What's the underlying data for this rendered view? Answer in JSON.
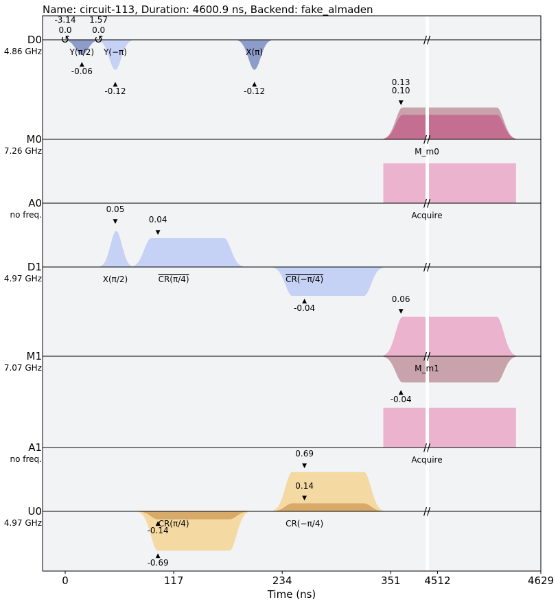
{
  "chart_data": {
    "type": "pulse-schedule",
    "title": "Name: circuit-113, Duration: 4600.9 ns, Backend: fake_almaden",
    "xlabel": "Time (ns)",
    "x_ticks": [
      "0",
      "117",
      "234",
      "351",
      "4512",
      "4629"
    ],
    "background": "#f2f3f5",
    "channels": [
      {
        "name": "D0",
        "freq": "4.86 GHz"
      },
      {
        "name": "M0",
        "freq": "7.26 GHz"
      },
      {
        "name": "A0",
        "freq": "no freq."
      },
      {
        "name": "D1",
        "freq": "4.97 GHz"
      },
      {
        "name": "M1",
        "freq": "7.07 GHz"
      },
      {
        "name": "A1",
        "freq": "no freq."
      },
      {
        "name": "U0",
        "freq": "4.97 GHz"
      }
    ],
    "phase_labels": [
      {
        "channel": "D0",
        "time": 0,
        "values": [
          "-3.14",
          "0.0"
        ]
      },
      {
        "channel": "D0",
        "time": 36,
        "values": [
          "1.57",
          "0.0"
        ]
      }
    ],
    "gate_labels": [
      {
        "channel": "D0",
        "time": 18,
        "text": "Y(π/2)"
      },
      {
        "channel": "D0",
        "time": 54,
        "text": "Y(−π)"
      },
      {
        "channel": "D0",
        "time": 204,
        "text": "X(π)"
      },
      {
        "channel": "M0",
        "time": 0,
        "text": "M_m0",
        "at_break": true
      },
      {
        "channel": "A0",
        "time": 0,
        "text": "Acquire",
        "at_break": true
      },
      {
        "channel": "D1",
        "time": 54,
        "text": "X(π/2)"
      },
      {
        "channel": "D1",
        "time": 117,
        "text": "CR(π/4)",
        "overline": true
      },
      {
        "channel": "D1",
        "time": 258,
        "text": "CR(−π/4)",
        "overline": true
      },
      {
        "channel": "M1",
        "time": 0,
        "text": "M_m1",
        "at_break": true
      },
      {
        "channel": "A1",
        "time": 0,
        "text": "Acquire",
        "at_break": true
      },
      {
        "channel": "U0",
        "time": 117,
        "text": "CR(π/4)"
      },
      {
        "channel": "U0",
        "time": 258,
        "text": "CR(−π/4)"
      }
    ],
    "amplitude_labels": [
      {
        "channel": "D0",
        "time": 18,
        "text": "-0.06",
        "below": true
      },
      {
        "channel": "D0",
        "time": 54,
        "text": "-0.12",
        "below": true
      },
      {
        "channel": "D0",
        "time": 204,
        "text": "-0.12",
        "below": true
      },
      {
        "channel": "D0",
        "time": 362,
        "text": "0.13",
        "below": false
      },
      {
        "channel": "D0",
        "time": 362,
        "text": "0.10",
        "below": false
      },
      {
        "channel": "D1",
        "time": 54,
        "text": "0.05",
        "below": false
      },
      {
        "channel": "D1",
        "time": 100,
        "text": "0.04",
        "below": false
      },
      {
        "channel": "D1",
        "time": 258,
        "text": "-0.04",
        "below": true
      },
      {
        "channel": "D1",
        "time": 362,
        "text": "0.06",
        "below": false
      },
      {
        "channel": "M1",
        "time": 362,
        "text": "-0.04",
        "below": true
      },
      {
        "channel": "A1",
        "time": 258,
        "text": "0.69",
        "below": false
      },
      {
        "channel": "A1",
        "time": 258,
        "text": "0.14",
        "below": false
      },
      {
        "channel": "U0",
        "time": 100,
        "text": "-0.14",
        "below": true
      },
      {
        "channel": "U0",
        "time": 100,
        "text": "-0.69",
        "below": true
      }
    ],
    "waveforms": [
      {
        "channel": "D0",
        "kind": "gaussian",
        "start": 0,
        "end": 36,
        "amplitude": -0.06,
        "color": "#8e9cc9"
      },
      {
        "channel": "D0",
        "kind": "gaussian",
        "start": 36,
        "end": 72,
        "amplitude": -0.12,
        "color": "#c5d1f5"
      },
      {
        "channel": "D0",
        "kind": "gaussian",
        "start": 186,
        "end": 222,
        "amplitude": -0.12,
        "color": "#8e9cc9"
      },
      {
        "channel": "M0",
        "kind": "gaussian_square",
        "start": 343,
        "end": 4600.9,
        "amplitude": 0.13,
        "color": "#c9a3ab"
      },
      {
        "channel": "M0",
        "kind": "gaussian_square",
        "start": 343,
        "end": 4600.9,
        "amplitude": 0.1,
        "color": "#c46e92"
      },
      {
        "channel": "A0",
        "kind": "acquire",
        "start": 343,
        "end": 4600.9,
        "color": "#ebb3ce"
      },
      {
        "channel": "D1",
        "kind": "gaussian",
        "start": 38,
        "end": 72,
        "amplitude": 0.05,
        "color": "#c5d1f5"
      },
      {
        "channel": "D1",
        "kind": "gaussian_square",
        "start": 72,
        "end": 192,
        "amplitude": 0.04,
        "color": "#c5d1f5"
      },
      {
        "channel": "D1",
        "kind": "gaussian_square",
        "start": 224,
        "end": 343,
        "amplitude": -0.04,
        "color": "#c5d1f5"
      },
      {
        "channel": "M1",
        "kind": "gaussian_square",
        "start": 343,
        "end": 4600.9,
        "amplitude": 0.06,
        "color": "#ebb3ce"
      },
      {
        "channel": "M1",
        "kind": "gaussian_square",
        "start": 343,
        "end": 4600.9,
        "amplitude": -0.04,
        "color": "#c9a3ab"
      },
      {
        "channel": "A1",
        "kind": "acquire",
        "start": 343,
        "end": 4600.9,
        "color": "#ebb3ce"
      },
      {
        "channel": "U0",
        "kind": "gaussian_square",
        "start": 224,
        "end": 343,
        "amplitude": 0.69,
        "color": "#f4d9a3"
      },
      {
        "channel": "U0",
        "kind": "gaussian_square",
        "start": 224,
        "end": 343,
        "amplitude": 0.14,
        "color": "#d8aa6a"
      },
      {
        "channel": "U0",
        "kind": "gaussian_square",
        "start": 79,
        "end": 198,
        "amplitude": -0.69,
        "color": "#f4d9a3"
      },
      {
        "channel": "U0",
        "kind": "gaussian_square",
        "start": 79,
        "end": 198,
        "amplitude": -0.14,
        "color": "#d8aa6a"
      }
    ],
    "axis_break": {
      "from": 390,
      "to": 4500,
      "label": "//"
    }
  }
}
